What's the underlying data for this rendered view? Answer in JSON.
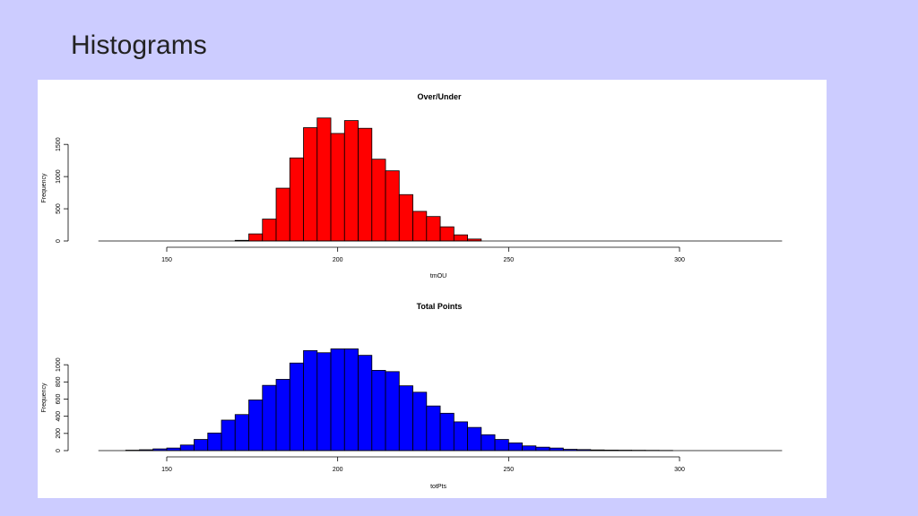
{
  "slide": {
    "title": "Histograms"
  },
  "chart_data": [
    {
      "type": "bar",
      "title": "Over/Under",
      "xlabel": "tmOU",
      "ylabel": "Frequency",
      "color": "#ff0000",
      "xlim": [
        130,
        330
      ],
      "ylim": [
        0,
        1600
      ],
      "xticks": [
        150,
        200,
        250,
        300
      ],
      "yticks": [
        0,
        500,
        1000,
        1500
      ],
      "bin_start": 170,
      "bin_width": 4,
      "values": [
        10,
        110,
        340,
        820,
        1290,
        1760,
        1910,
        1670,
        1870,
        1750,
        1270,
        1090,
        720,
        460,
        380,
        220,
        95,
        30
      ]
    },
    {
      "type": "bar",
      "title": "Total Points",
      "xlabel": "totPts",
      "ylabel": "Frequency",
      "color": "#0000ff",
      "xlim": [
        130,
        330
      ],
      "ylim": [
        0,
        1200
      ],
      "xticks": [
        150,
        200,
        250,
        300
      ],
      "yticks": [
        0,
        200,
        400,
        600,
        800,
        1000
      ],
      "bin_start": 138,
      "bin_width": 4,
      "values": [
        5,
        10,
        20,
        30,
        65,
        130,
        205,
        355,
        420,
        590,
        760,
        830,
        1020,
        1165,
        1140,
        1185,
        1185,
        1110,
        935,
        920,
        755,
        680,
        520,
        435,
        335,
        270,
        185,
        130,
        90,
        55,
        40,
        30,
        15,
        12,
        8,
        6,
        5,
        4,
        3,
        2
      ]
    }
  ]
}
